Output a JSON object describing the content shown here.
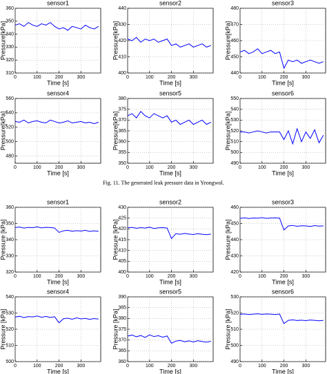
{
  "caption": "Fig. 11. The generated leak pressure data in Yeongwol.",
  "chart_data": [
    {
      "type": "line",
      "title": "sensor1",
      "xlabel": "Time [s]",
      "ylabel": "Pressure[kPa]",
      "color": "#0000ff",
      "grid": true,
      "xlim": [
        0,
        390
      ],
      "xticks": [
        0,
        100,
        200,
        300
      ],
      "ylim": [
        310,
        360
      ],
      "yticks": [
        310,
        320,
        330,
        340,
        350,
        360
      ],
      "x": [
        0,
        20,
        40,
        60,
        80,
        100,
        120,
        140,
        160,
        180,
        200,
        220,
        240,
        260,
        280,
        300,
        320,
        340,
        360,
        380
      ],
      "values": [
        347,
        348,
        346,
        349,
        347,
        346,
        348,
        347,
        349,
        346,
        344,
        345,
        343,
        346,
        345,
        344,
        347,
        345,
        344,
        346
      ]
    },
    {
      "type": "line",
      "title": "sensor2",
      "xlabel": "Time [s]",
      "ylabel": "Pressure[kPa]",
      "color": "#0000ff",
      "grid": true,
      "xlim": [
        0,
        390
      ],
      "xticks": [
        0,
        100,
        200,
        300
      ],
      "ylim": [
        400,
        440
      ],
      "yticks": [
        400,
        410,
        420,
        430,
        440
      ],
      "x": [
        0,
        20,
        40,
        60,
        80,
        100,
        120,
        140,
        160,
        180,
        200,
        220,
        240,
        260,
        280,
        300,
        320,
        340,
        360,
        380
      ],
      "values": [
        421,
        420,
        422,
        419,
        421,
        420,
        421,
        419,
        420,
        421,
        417,
        418,
        416,
        417,
        418,
        416,
        417,
        418,
        416,
        417
      ]
    },
    {
      "type": "line",
      "title": "sensor3",
      "xlabel": "Time [s]",
      "ylabel": "Pressure[kPa]",
      "color": "#0000ff",
      "grid": true,
      "xlim": [
        0,
        390
      ],
      "xticks": [
        0,
        100,
        200,
        300
      ],
      "ylim": [
        440,
        480
      ],
      "yticks": [
        440,
        450,
        460,
        470,
        480
      ],
      "x": [
        0,
        20,
        40,
        60,
        80,
        100,
        120,
        140,
        160,
        180,
        200,
        220,
        240,
        260,
        280,
        300,
        320,
        340,
        360,
        380
      ],
      "values": [
        453,
        454,
        452,
        453,
        455,
        452,
        453,
        454,
        452,
        453,
        443,
        448,
        447,
        448,
        446,
        447,
        448,
        447,
        446,
        447
      ]
    },
    {
      "type": "line",
      "title": "sensor4",
      "xlabel": "Time [s]",
      "ylabel": "Pressure[kPa]",
      "color": "#0000ff",
      "grid": true,
      "xlim": [
        0,
        390
      ],
      "xticks": [
        0,
        100,
        200,
        300
      ],
      "ylim": [
        470,
        560
      ],
      "yticks": [
        480,
        500,
        520,
        540,
        560
      ],
      "x": [
        0,
        20,
        40,
        60,
        80,
        100,
        120,
        140,
        160,
        180,
        200,
        220,
        240,
        260,
        280,
        300,
        320,
        340,
        360,
        380
      ],
      "values": [
        528,
        527,
        530,
        526,
        528,
        529,
        527,
        526,
        530,
        528,
        526,
        527,
        529,
        526,
        527,
        528,
        526,
        527,
        525,
        527
      ]
    },
    {
      "type": "line",
      "title": "sensor5",
      "xlabel": "Time [s]",
      "ylabel": "Pressure[kPa]",
      "color": "#0000ff",
      "grid": true,
      "xlim": [
        0,
        390
      ],
      "xticks": [
        0,
        100,
        200,
        300
      ],
      "ylim": [
        350,
        380
      ],
      "yticks": [
        350,
        355,
        360,
        365,
        370,
        375,
        380
      ],
      "x": [
        0,
        20,
        40,
        60,
        80,
        100,
        120,
        140,
        160,
        180,
        200,
        220,
        240,
        260,
        280,
        300,
        320,
        340,
        360,
        380
      ],
      "values": [
        372,
        373,
        371,
        374,
        372,
        371,
        373,
        372,
        371,
        372,
        369,
        370,
        368,
        369,
        370,
        368,
        369,
        370,
        368,
        369
      ]
    },
    {
      "type": "line",
      "title": "sensor6",
      "xlabel": "Time [s]",
      "ylabel": "Pressure[kPa]",
      "color": "#0000ff",
      "grid": true,
      "xlim": [
        0,
        390
      ],
      "xticks": [
        0,
        100,
        200,
        300
      ],
      "ylim": [
        490,
        550
      ],
      "yticks": [
        490,
        500,
        510,
        520,
        530,
        540,
        550
      ],
      "x": [
        0,
        20,
        40,
        60,
        80,
        100,
        120,
        140,
        160,
        180,
        200,
        220,
        240,
        260,
        280,
        300,
        320,
        340,
        360,
        380
      ],
      "values": [
        519,
        519,
        518,
        519,
        520,
        519,
        518,
        519,
        519,
        519,
        512,
        520,
        508,
        522,
        510,
        519,
        513,
        521,
        509,
        516
      ]
    },
    {
      "type": "line",
      "title": "sensor1",
      "xlabel": "Time [s]",
      "ylabel": "Pressure [kPa]",
      "color": "#0000ff",
      "grid": true,
      "xlim": [
        0,
        390
      ],
      "xticks": [
        0,
        100,
        200,
        300
      ],
      "ylim": [
        320,
        360
      ],
      "yticks": [
        320,
        330,
        340,
        350,
        360
      ],
      "x": [
        0,
        20,
        40,
        60,
        80,
        100,
        120,
        140,
        160,
        180,
        200,
        220,
        240,
        260,
        280,
        300,
        320,
        340,
        360,
        380
      ],
      "values": [
        347.5,
        347.8,
        347.2,
        347.6,
        347.4,
        347.9,
        347.3,
        347.6,
        347.5,
        347.2,
        344.5,
        345.5,
        345.8,
        345.2,
        345.6,
        345.3,
        345.8,
        345.1,
        345.5,
        345.2
      ]
    },
    {
      "type": "line",
      "title": "sensor2",
      "xlabel": "Time [s]",
      "ylabel": "Pressure [kPa]",
      "color": "#0000ff",
      "grid": true,
      "xlim": [
        0,
        390
      ],
      "xticks": [
        0,
        100,
        200,
        300
      ],
      "ylim": [
        400,
        430
      ],
      "yticks": [
        400,
        405,
        410,
        415,
        420,
        425,
        430
      ],
      "x": [
        0,
        20,
        40,
        60,
        80,
        100,
        120,
        140,
        160,
        180,
        200,
        220,
        240,
        260,
        280,
        300,
        320,
        340,
        360,
        380
      ],
      "values": [
        420.5,
        420.7,
        420.3,
        420.6,
        420.4,
        420.8,
        420.2,
        420.5,
        420.6,
        420.4,
        415.5,
        417.8,
        417.5,
        417.9,
        417.6,
        417.4,
        417.8,
        417.5,
        417.3,
        417.6
      ]
    },
    {
      "type": "line",
      "title": "sensor3",
      "xlabel": "Time [s]",
      "ylabel": "Pressure [kPa]",
      "color": "#0000ff",
      "grid": true,
      "xlim": [
        0,
        390
      ],
      "xticks": [
        0,
        100,
        200,
        300
      ],
      "ylim": [
        420,
        460
      ],
      "yticks": [
        420,
        430,
        440,
        450,
        460
      ],
      "x": [
        0,
        20,
        40,
        60,
        80,
        100,
        120,
        140,
        160,
        180,
        200,
        220,
        240,
        260,
        280,
        300,
        320,
        340,
        360,
        380
      ],
      "values": [
        453.2,
        453.5,
        453.1,
        453.4,
        453.3,
        453.6,
        453.2,
        453.4,
        453.5,
        453.3,
        446,
        448.5,
        448.8,
        448.3,
        448.6,
        448.5,
        448.2,
        448.7,
        448.4,
        448.5
      ]
    },
    {
      "type": "line",
      "title": "sensor4",
      "xlabel": "Time [s]",
      "ylabel": "Pressure [kPa]",
      "color": "#0000ff",
      "grid": true,
      "xlim": [
        0,
        390
      ],
      "xticks": [
        0,
        100,
        200,
        300
      ],
      "ylim": [
        500,
        540
      ],
      "yticks": [
        500,
        510,
        520,
        530,
        540
      ],
      "x": [
        0,
        20,
        40,
        60,
        80,
        100,
        120,
        140,
        160,
        180,
        200,
        220,
        240,
        260,
        280,
        300,
        320,
        340,
        360,
        380
      ],
      "values": [
        527.5,
        528,
        527.2,
        527.8,
        527.6,
        528.2,
        527.4,
        527.9,
        527.3,
        527.7,
        524,
        526.5,
        526.8,
        526.2,
        527,
        526.4,
        526.7,
        526.1,
        526.6,
        526.3
      ]
    },
    {
      "type": "line",
      "title": "sensor5",
      "xlabel": "Time [s]",
      "ylabel": "Pressure [kPa]",
      "color": "#0000ff",
      "grid": true,
      "xlim": [
        0,
        390
      ],
      "xticks": [
        0,
        100,
        200,
        300
      ],
      "ylim": [
        360,
        390
      ],
      "yticks": [
        360,
        365,
        370,
        375,
        380,
        385,
        390
      ],
      "x": [
        0,
        20,
        40,
        60,
        80,
        100,
        120,
        140,
        160,
        180,
        200,
        220,
        240,
        260,
        280,
        300,
        320,
        340,
        360,
        380
      ],
      "values": [
        371.8,
        372.3,
        371.5,
        372.1,
        371.2,
        372.4,
        371.6,
        372,
        371.3,
        371.9,
        368.5,
        369.5,
        369.8,
        369.2,
        369.6,
        369.1,
        369.7,
        369.3,
        369,
        369.4
      ]
    },
    {
      "type": "line",
      "title": "sensor6",
      "xlabel": "Time [s]",
      "ylabel": "Pressure [kPa]",
      "color": "#0000ff",
      "grid": true,
      "xlim": [
        0,
        390
      ],
      "xticks": [
        0,
        100,
        200,
        300
      ],
      "ylim": [
        490,
        530
      ],
      "yticks": [
        490,
        500,
        510,
        520,
        530
      ],
      "x": [
        0,
        20,
        40,
        60,
        80,
        100,
        120,
        140,
        160,
        180,
        200,
        220,
        240,
        260,
        280,
        300,
        320,
        340,
        360,
        380
      ],
      "values": [
        519.2,
        519.4,
        519.1,
        519.3,
        519.5,
        519.2,
        519.4,
        519.3,
        519.1,
        519.4,
        513.5,
        515.5,
        515.8,
        515.4,
        515.6,
        515.3,
        515.7,
        515.5,
        515.2,
        515.5
      ]
    }
  ]
}
